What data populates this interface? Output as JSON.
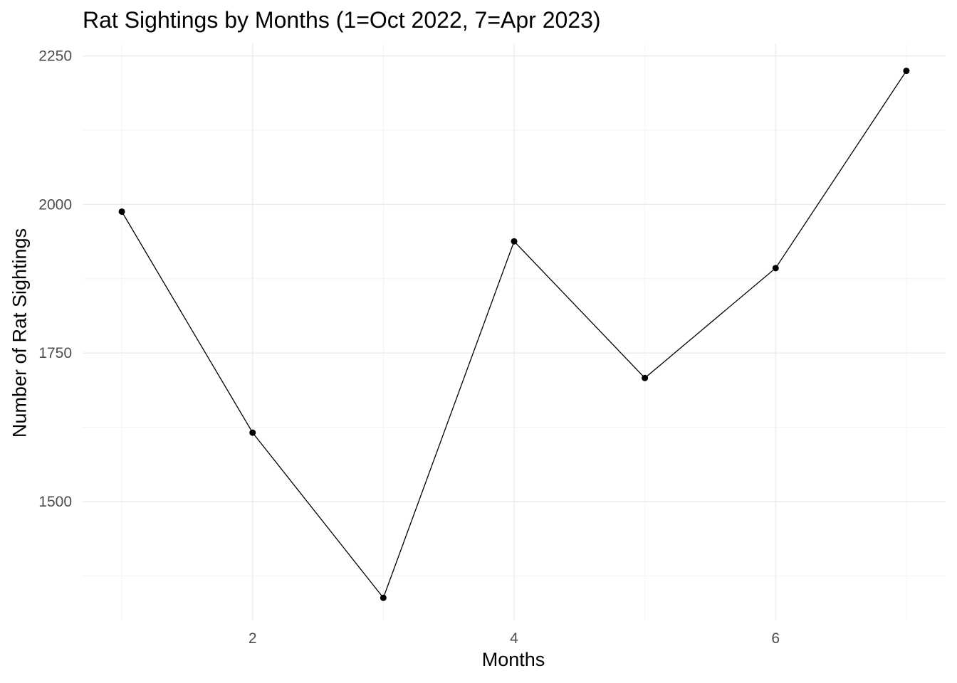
{
  "chart_data": {
    "type": "line",
    "title": "Rat Sightings by Months (1=Oct 2022, 7=Apr 2023)",
    "xlabel": "Months",
    "ylabel": "Number of Rat Sightings",
    "x": [
      1,
      2,
      3,
      4,
      5,
      6,
      7
    ],
    "series": [
      {
        "values": [
          1988,
          1616,
          1338,
          1938,
          1708,
          1893,
          2225
        ]
      }
    ],
    "x_ticks": [
      "2",
      "4",
      "6"
    ],
    "y_ticks": [
      "1500",
      "1750",
      "2000",
      "2250"
    ],
    "xlim": [
      0.7,
      7.3
    ],
    "ylim": [
      1300,
      2270
    ],
    "grid": true,
    "line_color": "#000000",
    "point_color": "#000000",
    "grid_color": "#ebebeb",
    "background": "#ffffff"
  }
}
